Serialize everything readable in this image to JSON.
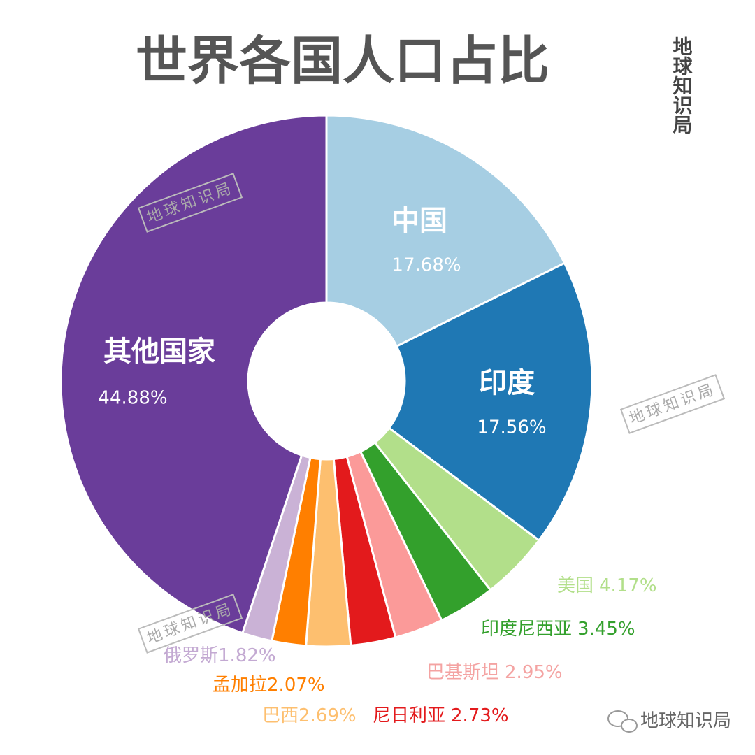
{
  "chart_data": {
    "type": "donut",
    "title": "世界各国人口占比",
    "categories": [
      "中国",
      "印度",
      "美国",
      "印度尼西亚",
      "巴基斯坦",
      "尼日利亚",
      "巴西",
      "孟加拉",
      "俄罗斯",
      "其他国家"
    ],
    "values": [
      17.68,
      17.56,
      4.17,
      3.45,
      2.95,
      2.73,
      2.69,
      2.07,
      1.82,
      44.88
    ],
    "value_labels": [
      "17.68%",
      "17.56%",
      "4.17%",
      "3.45%",
      "2.95%",
      "2.73%",
      "2.69%",
      "2.07%",
      "1.82%",
      "44.88%"
    ],
    "colors": [
      "#a6cee3",
      "#1f78b4",
      "#b2df8a",
      "#33a02c",
      "#fb9a99",
      "#e31a1c",
      "#fdbf6f",
      "#ff7f00",
      "#cab2d6",
      "#6a3d9a"
    ],
    "watermarks": [
      "地球知识局",
      "地球知识局",
      "地球知识局",
      "地球知识局",
      "地球知识局"
    ]
  }
}
